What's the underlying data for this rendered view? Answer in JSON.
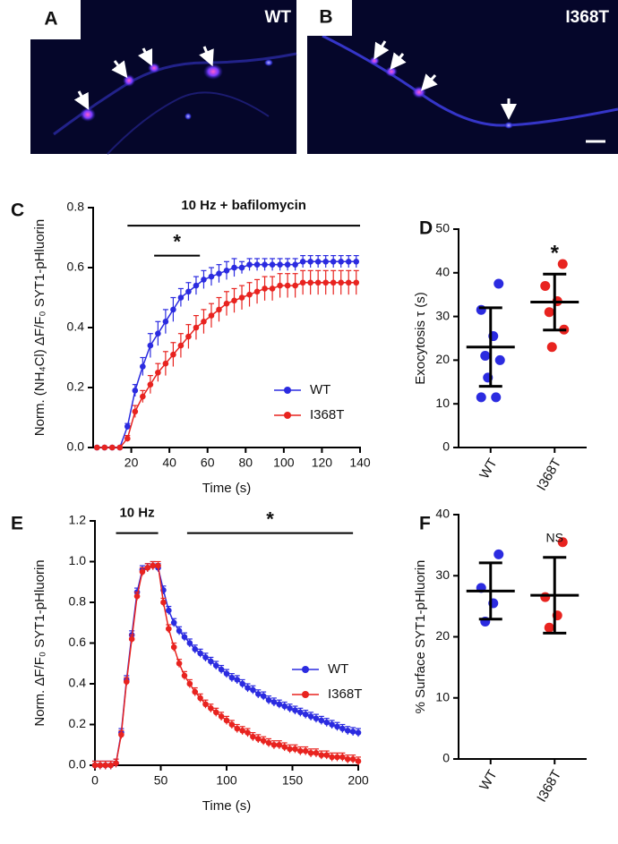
{
  "panels": [
    {
      "label": "A",
      "title": "WT"
    },
    {
      "label": "B",
      "title": "I368T"
    }
  ],
  "chart_data": [
    {
      "type": "line",
      "panel_label": "C",
      "xlabel": "Time (s)",
      "ylabel": "Norm. (NH₄Cl) ΔF/F₀ SYT1-pHluorin",
      "xlim": [
        0,
        140
      ],
      "ylim": [
        0,
        0.8
      ],
      "xticks": [
        20,
        40,
        60,
        80,
        100,
        120,
        140
      ],
      "yticks": [
        {
          "value": 0,
          "label": "0.0"
        },
        0.2,
        0.4,
        0.6,
        0.8
      ],
      "legend": "lower right",
      "x": [
        2,
        6,
        10,
        14,
        18,
        22,
        26,
        30,
        34,
        38,
        42,
        46,
        50,
        54,
        58,
        62,
        66,
        70,
        74,
        78,
        82,
        86,
        90,
        94,
        98,
        102,
        106,
        110,
        114,
        118,
        122,
        126,
        130,
        134,
        138
      ],
      "series": [
        {
          "name": "WT",
          "color": "#2b2be0",
          "values": [
            0,
            0,
            0,
            0,
            0.07,
            0.19,
            0.27,
            0.34,
            0.38,
            0.42,
            0.46,
            0.5,
            0.52,
            0.54,
            0.56,
            0.57,
            0.58,
            0.59,
            0.6,
            0.6,
            0.61,
            0.61,
            0.61,
            0.61,
            0.61,
            0.61,
            0.61,
            0.62,
            0.62,
            0.62,
            0.62,
            0.62,
            0.62,
            0.62,
            0.62
          ],
          "errors": [
            0,
            0,
            0,
            0,
            0.01,
            0.02,
            0.03,
            0.04,
            0.04,
            0.04,
            0.04,
            0.03,
            0.03,
            0.03,
            0.03,
            0.03,
            0.03,
            0.03,
            0.03,
            0.02,
            0.02,
            0.02,
            0.02,
            0.02,
            0.02,
            0.02,
            0.02,
            0.02,
            0.02,
            0.02,
            0.02,
            0.02,
            0.02,
            0.02,
            0.02
          ]
        },
        {
          "name": "I368T",
          "color": "#e8231f",
          "values": [
            0,
            0,
            0,
            0,
            0.03,
            0.12,
            0.17,
            0.21,
            0.25,
            0.28,
            0.31,
            0.34,
            0.37,
            0.4,
            0.42,
            0.44,
            0.46,
            0.48,
            0.49,
            0.5,
            0.51,
            0.52,
            0.53,
            0.53,
            0.54,
            0.54,
            0.54,
            0.55,
            0.55,
            0.55,
            0.55,
            0.55,
            0.55,
            0.55,
            0.55
          ],
          "errors": [
            0,
            0,
            0,
            0,
            0.01,
            0.02,
            0.02,
            0.03,
            0.03,
            0.04,
            0.04,
            0.04,
            0.04,
            0.04,
            0.04,
            0.04,
            0.04,
            0.04,
            0.04,
            0.04,
            0.04,
            0.04,
            0.04,
            0.04,
            0.04,
            0.04,
            0.04,
            0.04,
            0.04,
            0.04,
            0.04,
            0.04,
            0.04,
            0.04,
            0.04
          ]
        }
      ],
      "annotations": [
        {
          "text": "10 Hz + bafilomycin",
          "start": 18,
          "end": 140,
          "y": 0.74
        },
        {
          "text": "*",
          "start": 32,
          "end": 56,
          "y": 0.64
        }
      ]
    },
    {
      "type": "scatter",
      "panel_label": "D",
      "ylabel": "Exocytosis τ (s)",
      "categories": [
        "WT",
        "I368T"
      ],
      "ylim": [
        0,
        50
      ],
      "yticks": [
        0,
        10,
        20,
        30,
        40,
        50
      ],
      "series": [
        {
          "name": "WT",
          "color": "#2b2be0",
          "values": [
            37.5,
            31.5,
            25.5,
            21,
            20,
            16,
            11.5,
            11.5
          ],
          "mean": 23,
          "sd": 9
        },
        {
          "name": "I368T",
          "color": "#e8231f",
          "values": [
            42,
            37,
            33.5,
            31,
            27,
            23
          ],
          "mean": 33.3,
          "sd": 6.4,
          "annotation": "*"
        }
      ]
    },
    {
      "type": "line",
      "panel_label": "E",
      "xlabel": "Time (s)",
      "ylabel": "Norm. ΔF/F₀ SYT1-pHluorin",
      "xlim": [
        0,
        200
      ],
      "ylim": [
        0,
        1.2
      ],
      "xticks": [
        0,
        50,
        100,
        150,
        200
      ],
      "yticks": [
        {
          "value": 0,
          "label": "0.0"
        },
        0.2,
        0.4,
        0.6,
        0.8,
        {
          "value": 1,
          "label": "1.0"
        },
        1.2
      ],
      "legend": "lower right",
      "x": [
        0,
        4,
        8,
        12,
        16,
        20,
        24,
        28,
        32,
        36,
        40,
        44,
        48,
        52,
        56,
        60,
        64,
        68,
        72,
        76,
        80,
        84,
        88,
        92,
        96,
        100,
        104,
        108,
        112,
        116,
        120,
        124,
        128,
        132,
        136,
        140,
        144,
        148,
        152,
        156,
        160,
        164,
        168,
        172,
        176,
        180,
        184,
        188,
        192,
        196,
        200
      ],
      "series": [
        {
          "name": "WT",
          "color": "#2b2be0",
          "error": 0.02,
          "values": [
            0,
            0,
            0,
            0,
            0.01,
            0.16,
            0.42,
            0.64,
            0.85,
            0.96,
            0.97,
            0.98,
            0.97,
            0.86,
            0.76,
            0.7,
            0.66,
            0.63,
            0.6,
            0.57,
            0.55,
            0.53,
            0.51,
            0.49,
            0.47,
            0.45,
            0.43,
            0.42,
            0.4,
            0.38,
            0.37,
            0.35,
            0.34,
            0.32,
            0.31,
            0.3,
            0.29,
            0.28,
            0.27,
            0.26,
            0.25,
            0.24,
            0.23,
            0.22,
            0.21,
            0.2,
            0.19,
            0.18,
            0.17,
            0.165,
            0.16
          ]
        },
        {
          "name": "I368T",
          "color": "#e8231f",
          "error": 0.02,
          "values": [
            0,
            0,
            0,
            0,
            0.01,
            0.15,
            0.41,
            0.62,
            0.83,
            0.95,
            0.97,
            0.98,
            0.98,
            0.8,
            0.67,
            0.58,
            0.5,
            0.44,
            0.4,
            0.36,
            0.33,
            0.3,
            0.28,
            0.26,
            0.24,
            0.22,
            0.2,
            0.18,
            0.17,
            0.16,
            0.14,
            0.13,
            0.12,
            0.11,
            0.1,
            0.1,
            0.09,
            0.08,
            0.08,
            0.07,
            0.07,
            0.06,
            0.06,
            0.05,
            0.05,
            0.04,
            0.04,
            0.04,
            0.03,
            0.03,
            0.02
          ]
        }
      ],
      "annotations": [
        {
          "text": "10 Hz",
          "start": 16,
          "end": 48,
          "y": 1.14
        },
        {
          "text": "*",
          "start": 70,
          "end": 196,
          "y": 1.14
        }
      ]
    },
    {
      "type": "scatter",
      "panel_label": "F",
      "ylabel": "% Surface SYT1-pHluorin",
      "categories": [
        "WT",
        "I368T"
      ],
      "ylim": [
        0,
        40
      ],
      "yticks": [
        0,
        10,
        20,
        30,
        40
      ],
      "series": [
        {
          "name": "WT",
          "color": "#2b2be0",
          "values": [
            33.5,
            28,
            25.5,
            22.5
          ],
          "mean": 27.5,
          "sd": 4.6
        },
        {
          "name": "I368T",
          "color": "#e8231f",
          "values": [
            35.5,
            26.5,
            23.5,
            21.5
          ],
          "mean": 26.8,
          "sd": 6.2,
          "annotation": "NS"
        }
      ]
    }
  ]
}
